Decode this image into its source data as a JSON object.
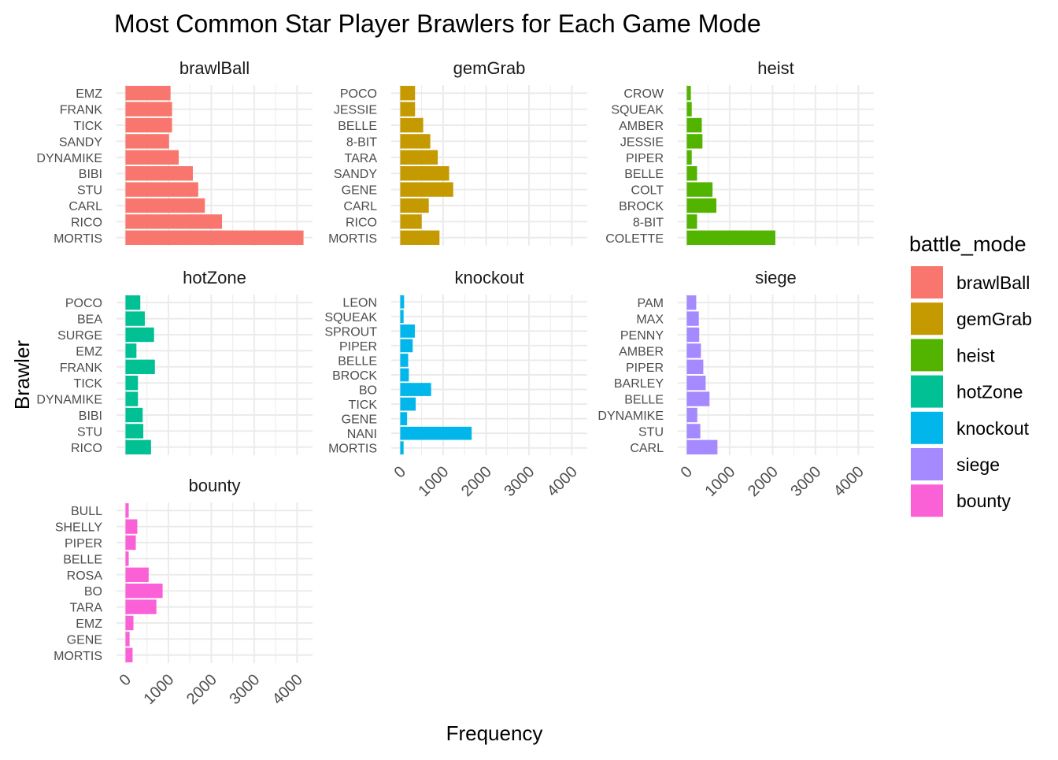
{
  "chart_data": {
    "type": "bar",
    "orientation": "horizontal",
    "title": "Most Common Star Player Brawlers for Each Game Mode",
    "xlabel": "Frequency",
    "ylabel": "Brawler",
    "xlim": [
      -210,
      4360
    ],
    "x_ticks": [
      0,
      1000,
      2000,
      3000,
      4000
    ],
    "grid": true,
    "legend": {
      "title": "battle_mode",
      "placement": "right",
      "entries": [
        {
          "name": "brawlBall",
          "color": "#F8766D"
        },
        {
          "name": "gemGrab",
          "color": "#C49A00"
        },
        {
          "name": "heist",
          "color": "#53B400"
        },
        {
          "name": "hotZone",
          "color": "#00C094"
        },
        {
          "name": "knockout",
          "color": "#00B6EB"
        },
        {
          "name": "siege",
          "color": "#A58AFF"
        },
        {
          "name": "bounty",
          "color": "#FB61D7"
        }
      ]
    },
    "panels": [
      {
        "name": "brawlBall",
        "color": "#F8766D",
        "categories": [
          "EMZ",
          "FRANK",
          "TICK",
          "SANDY",
          "DYNAMIKE",
          "BIBI",
          "STU",
          "CARL",
          "RICO",
          "MORTIS"
        ],
        "values": [
          1050,
          1085,
          1085,
          1015,
          1240,
          1570,
          1695,
          1850,
          2250,
          4150
        ]
      },
      {
        "name": "gemGrab",
        "color": "#C49A00",
        "categories": [
          "POCO",
          "JESSIE",
          "BELLE",
          "8-BIT",
          "TARA",
          "SANDY",
          "GENE",
          "CARL",
          "RICO",
          "MORTIS"
        ],
        "values": [
          345,
          345,
          535,
          700,
          875,
          1140,
          1235,
          665,
          500,
          915
        ]
      },
      {
        "name": "heist",
        "color": "#53B400",
        "categories": [
          "CROW",
          "SQUEAK",
          "AMBER",
          "JESSIE",
          "PIPER",
          "BELLE",
          "COLT",
          "BROCK",
          "8-BIT",
          "COLETTE"
        ],
        "values": [
          95,
          115,
          350,
          365,
          115,
          240,
          600,
          690,
          240,
          2065
        ]
      },
      {
        "name": "hotZone",
        "color": "#00C094",
        "categories": [
          "POCO",
          "BEA",
          "SURGE",
          "EMZ",
          "FRANK",
          "TICK",
          "DYNAMIKE",
          "BIBI",
          "STU",
          "RICO"
        ],
        "values": [
          345,
          450,
          665,
          255,
          685,
          290,
          290,
          400,
          415,
          595
        ]
      },
      {
        "name": "knockout",
        "color": "#00B6EB",
        "categories": [
          "LEON",
          "SQUEAK",
          "SPROUT",
          "PIPER",
          "BELLE",
          "BROCK",
          "BO",
          "TICK",
          "GENE",
          "NANI",
          "MORTIS"
        ],
        "values": [
          90,
          78,
          340,
          290,
          185,
          200,
          720,
          360,
          160,
          1665,
          78
        ]
      },
      {
        "name": "siege",
        "color": "#A58AFF",
        "categories": [
          "PAM",
          "MAX",
          "PENNY",
          "AMBER",
          "PIPER",
          "BARLEY",
          "BELLE",
          "DYNAMIKE",
          "STU",
          "CARL"
        ],
        "values": [
          220,
          280,
          290,
          330,
          385,
          440,
          530,
          245,
          315,
          715
        ]
      },
      {
        "name": "bounty",
        "color": "#FB61D7",
        "categories": [
          "BULL",
          "SHELLY",
          "PIPER",
          "BELLE",
          "ROSA",
          "BO",
          "TARA",
          "EMZ",
          "GENE",
          "MORTIS"
        ],
        "values": [
          75,
          275,
          240,
          75,
          540,
          865,
          720,
          185,
          95,
          165
        ]
      }
    ]
  }
}
